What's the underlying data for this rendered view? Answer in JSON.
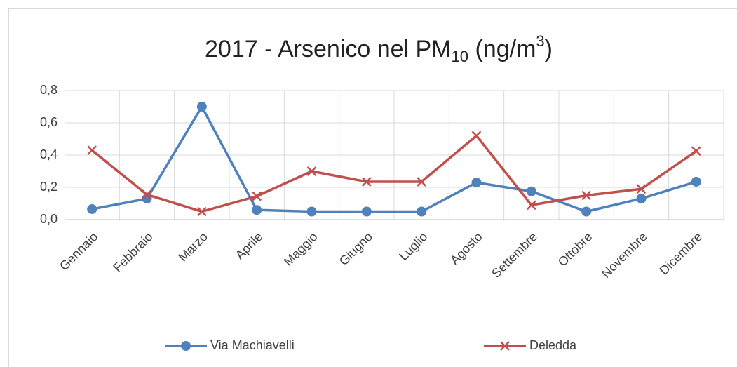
{
  "chart_data": {
    "type": "line",
    "title": [
      "2017 - Arsenico nel PM",
      "10",
      " (ng/m",
      "3",
      ")"
    ],
    "categories": [
      "Gennaio",
      "Febbraio",
      "Marzo",
      "Aprile",
      "Maggio",
      "Giugno",
      "Luglio",
      "Agosto",
      "Settembre",
      "Ottobre",
      "Novembre",
      "Dicembre"
    ],
    "series": [
      {
        "name": "Via Machiavelli",
        "color": "#4f81bd",
        "marker": "circle",
        "values": [
          0.065,
          0.13,
          0.7,
          0.06,
          0.05,
          0.05,
          0.05,
          0.23,
          0.175,
          0.05,
          0.13,
          0.235
        ]
      },
      {
        "name": "Deledda",
        "color": "#c0504d",
        "marker": "x",
        "values": [
          0.43,
          0.155,
          0.05,
          0.145,
          0.3,
          0.235,
          0.235,
          0.52,
          0.09,
          0.15,
          0.19,
          0.425
        ]
      }
    ],
    "ylim": [
      0,
      0.8
    ],
    "yticks": [
      {
        "value": 0,
        "label": "0,0"
      },
      {
        "value": 0.2,
        "label": "0,2"
      },
      {
        "value": 0.4,
        "label": "0,4"
      },
      {
        "value": 0.6,
        "label": "0,6"
      },
      {
        "value": 0.8,
        "label": "0,8"
      }
    ],
    "grid": true,
    "legend": "bottom"
  }
}
